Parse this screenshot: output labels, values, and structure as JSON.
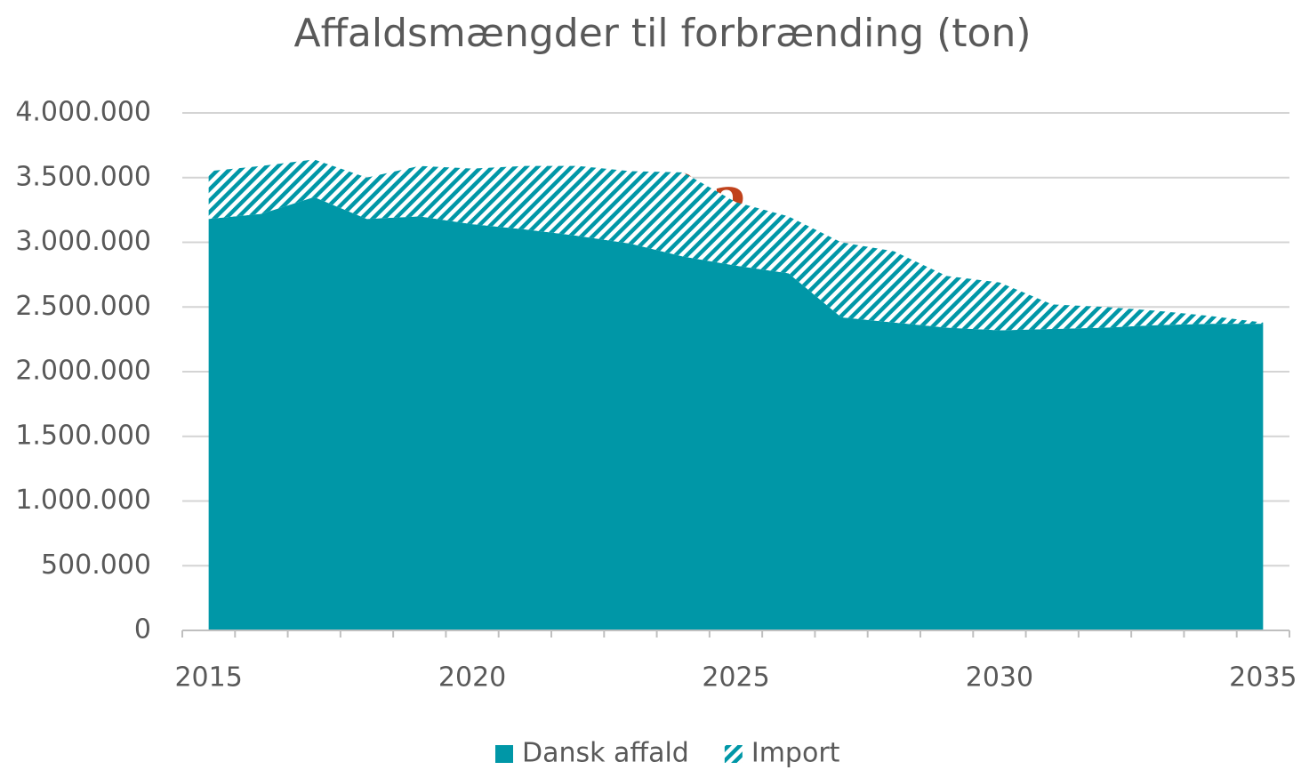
{
  "chart_data": {
    "type": "stacked_area",
    "title": "Affaldsmængder til forbrænding (ton)",
    "x": [
      2015,
      2016,
      2017,
      2018,
      2019,
      2020,
      2021,
      2022,
      2023,
      2024,
      2025,
      2026,
      2027,
      2028,
      2029,
      2030,
      2031,
      2032,
      2033,
      2034,
      2035
    ],
    "series": [
      {
        "name": "Dansk affald",
        "color": "#0097a7",
        "fill": "solid",
        "values": [
          3180000,
          3220000,
          3350000,
          3180000,
          3200000,
          3140000,
          3100000,
          3050000,
          2990000,
          2890000,
          2820000,
          2760000,
          2420000,
          2380000,
          2340000,
          2320000,
          2330000,
          2340000,
          2360000,
          2370000,
          2370000
        ]
      },
      {
        "name": "Import",
        "color": "#0097a7",
        "fill": "hatch",
        "values": [
          370000,
          370000,
          290000,
          320000,
          390000,
          430000,
          490000,
          540000,
          560000,
          650000,
          490000,
          440000,
          580000,
          550000,
          400000,
          370000,
          190000,
          160000,
          110000,
          60000,
          10000
        ]
      }
    ],
    "xlim": [
      2014.5,
      2035.5
    ],
    "xticks": [
      2015,
      2020,
      2025,
      2030,
      2035
    ],
    "ylim": [
      0,
      4000000
    ],
    "yticks": [
      0,
      {
        "value": 500000,
        "label": "500.000"
      },
      {
        "value": 1000000,
        "label": "1.000.000"
      },
      {
        "value": 1500000,
        "label": "1.500.000"
      },
      {
        "value": 2000000,
        "label": "2.000.000"
      },
      {
        "value": 2500000,
        "label": "2.500.000"
      },
      {
        "value": 3000000,
        "label": "3.000.000"
      },
      {
        "value": 3500000,
        "label": "3.500.000"
      },
      {
        "value": 4000000,
        "label": "4.000.000"
      }
    ],
    "grid": true,
    "legend": "bottom",
    "annotation": "?"
  }
}
